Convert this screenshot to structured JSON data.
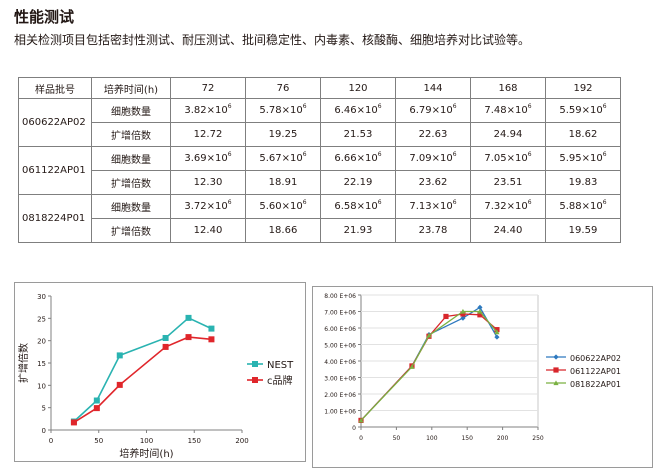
{
  "heading": "性能测试",
  "description": "相关检测项目包括密封性测试、耐压测试、批间稳定性、内毒素、核酸酶、细胞培养对比试验等。",
  "table": {
    "col_batch": "样品批号",
    "col_time": "培养时间(h)",
    "times": [
      "72",
      "76",
      "120",
      "144",
      "168",
      "192"
    ],
    "exp_label": "×10",
    "exp_value": "6",
    "batches": [
      {
        "id": "060622AP02",
        "count_label": "细胞数量",
        "counts": [
          "3.82",
          "5.78",
          "6.46",
          "6.79",
          "7.48",
          "5.59"
        ],
        "fold_label": "扩增倍数",
        "folds": [
          "12.72",
          "19.25",
          "21.53",
          "22.63",
          "24.94",
          "18.62"
        ]
      },
      {
        "id": "061122AP01",
        "count_label": "细胞数量",
        "counts": [
          "3.69",
          "5.67",
          "6.66",
          "7.09",
          "7.05",
          "5.95"
        ],
        "fold_label": "扩增倍数",
        "folds": [
          "12.30",
          "18.91",
          "22.19",
          "23.62",
          "23.51",
          "19.83"
        ]
      },
      {
        "id": "0818224P01",
        "count_label": "细胞数量",
        "counts": [
          "3.72",
          "5.60",
          "6.58",
          "7.13",
          "7.32",
          "5.88"
        ],
        "fold_label": "扩增倍数",
        "folds": [
          "12.40",
          "18.66",
          "21.93",
          "23.78",
          "24.40",
          "19.59"
        ]
      }
    ]
  },
  "chart_data": [
    {
      "type": "line",
      "xlabel": "培养时间(h)",
      "ylabel": "扩增倍数",
      "xlim": [
        0,
        200
      ],
      "ylim": [
        0,
        30
      ],
      "xticks": [
        "0",
        "50",
        "100",
        "150",
        "200"
      ],
      "yticks": [
        "0",
        "5",
        "10",
        "15",
        "20",
        "25",
        "30"
      ],
      "legend_position": "right",
      "series": [
        {
          "name": "NEST",
          "color": "#2ab3b1",
          "marker": "square",
          "x": [
            24,
            48,
            72,
            120,
            144,
            168
          ],
          "y": [
            1.9,
            6.6,
            16.7,
            20.6,
            25.1,
            22.7
          ]
        },
        {
          "name": "c品牌",
          "color": "#e0262b",
          "marker": "square",
          "x": [
            24,
            48,
            72,
            120,
            144,
            168
          ],
          "y": [
            1.7,
            4.9,
            10.1,
            18.6,
            20.8,
            20.3
          ]
        }
      ]
    },
    {
      "type": "line",
      "xlim": [
        0,
        250
      ],
      "ylim": [
        0,
        8000000
      ],
      "xticks": [
        "0",
        "50",
        "100",
        "150",
        "200",
        "250"
      ],
      "yticks": [
        "0",
        "1.00 E+06",
        "2.00 E+06",
        "3.00 E+06",
        "4.00 E+06",
        "5.00 E+06",
        "6.00 E+06",
        "7.00 E+06",
        "8.00 E+06"
      ],
      "legend_position": "right",
      "series": [
        {
          "name": "060622AP02",
          "color": "#2d79bf",
          "marker": "diamond",
          "x": [
            0,
            72,
            96,
            144,
            168,
            192
          ],
          "y": [
            400000,
            3700000,
            5600000,
            6600000,
            7250000,
            5450000
          ]
        },
        {
          "name": "061122AP01",
          "color": "#d8262b",
          "marker": "square",
          "x": [
            0,
            72,
            96,
            120,
            144,
            168,
            192
          ],
          "y": [
            400000,
            3700000,
            5500000,
            6700000,
            6850000,
            6800000,
            5900000
          ]
        },
        {
          "name": "081822AP01",
          "color": "#7ab142",
          "marker": "triangle",
          "x": [
            0,
            72,
            96,
            144,
            168,
            192
          ],
          "y": [
            400000,
            3650000,
            5550000,
            7000000,
            7000000,
            5750000
          ]
        }
      ]
    }
  ]
}
